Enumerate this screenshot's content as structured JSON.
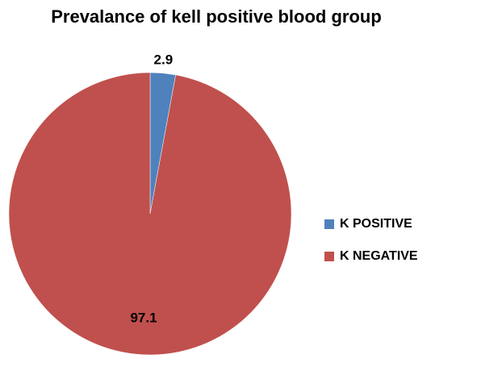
{
  "chart_data": {
    "type": "pie",
    "title": "Prevalance of kell positive blood group",
    "categories": [
      "K POSITIVE",
      "K NEGATIVE"
    ],
    "values": [
      2.9,
      97.1
    ],
    "data_labels": [
      "2.9",
      "97.1"
    ],
    "colors": [
      "#4F81BD",
      "#C0504D"
    ],
    "start_angle": "12 o'clock",
    "direction": "clockwise",
    "legend": {
      "placement": "right",
      "entries": [
        "K POSITIVE",
        "K NEGATIVE"
      ]
    }
  }
}
